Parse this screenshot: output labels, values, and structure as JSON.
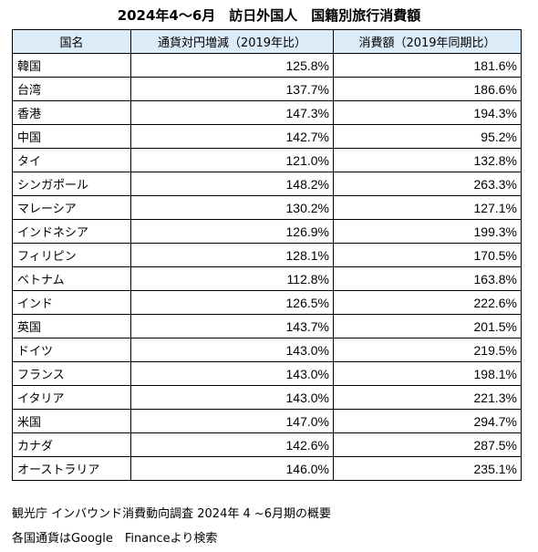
{
  "title": "2024年4～6月　訪日外国人　国籍別旅行消費額",
  "table": {
    "headers": [
      "国名",
      "通貨対円増減（2019年比）",
      "消費額（2019年同期比）"
    ],
    "rows": [
      {
        "country": "韓国",
        "currency_change": "125.8%",
        "spending": "181.6%"
      },
      {
        "country": "台湾",
        "currency_change": "137.7%",
        "spending": "186.6%"
      },
      {
        "country": "香港",
        "currency_change": "147.3%",
        "spending": "194.3%"
      },
      {
        "country": "中国",
        "currency_change": "142.7%",
        "spending": "95.2%"
      },
      {
        "country": "タイ",
        "currency_change": "121.0%",
        "spending": "132.8%"
      },
      {
        "country": "シンガポール",
        "currency_change": "148.2%",
        "spending": "263.3%"
      },
      {
        "country": "マレーシア",
        "currency_change": "130.2%",
        "spending": "127.1%"
      },
      {
        "country": "インドネシア",
        "currency_change": "126.9%",
        "spending": "199.3%"
      },
      {
        "country": "フィリピン",
        "currency_change": "128.1%",
        "spending": "170.5%"
      },
      {
        "country": "ベトナム",
        "currency_change": "112.8%",
        "spending": "163.8%"
      },
      {
        "country": "インド",
        "currency_change": "126.5%",
        "spending": "222.6%"
      },
      {
        "country": "英国",
        "currency_change": "143.7%",
        "spending": "201.5%"
      },
      {
        "country": "ドイツ",
        "currency_change": "143.0%",
        "spending": "219.5%"
      },
      {
        "country": "フランス",
        "currency_change": "143.0%",
        "spending": "198.1%"
      },
      {
        "country": "イタリア",
        "currency_change": "143.0%",
        "spending": "221.3%"
      },
      {
        "country": "米国",
        "currency_change": "147.0%",
        "spending": "294.7%"
      },
      {
        "country": "カナダ",
        "currency_change": "142.6%",
        "spending": "287.5%"
      },
      {
        "country": "オーストラリア",
        "currency_change": "146.0%",
        "spending": "235.1%"
      }
    ]
  },
  "notes": [
    "観光庁 インバウンド消費動向調査 2024年 4 ~6月期の概要",
    "各国通貨はGoogle　Financeより検索"
  ],
  "colors": {
    "header_background": "#dcebf8",
    "border": "#000000"
  }
}
